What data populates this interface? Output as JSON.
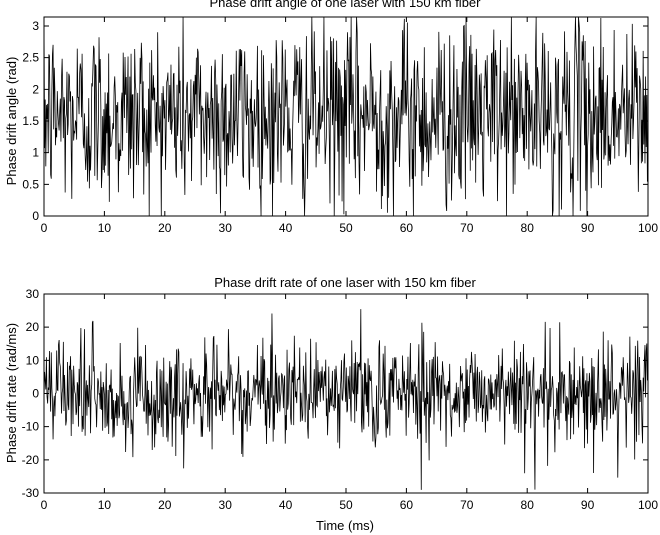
{
  "chart_data": [
    {
      "type": "line",
      "title": "Phase drift angle of one laser with 150 km fiber",
      "xlabel": "",
      "ylabel": "Phase drift angle (rad)",
      "xlim": [
        0,
        100
      ],
      "ylim": [
        0,
        3.14159
      ],
      "xticks": [
        0,
        10,
        20,
        30,
        40,
        50,
        60,
        70,
        80,
        90,
        100
      ],
      "yticks": [
        0,
        0.5,
        1,
        1.5,
        2,
        2.5,
        3
      ],
      "series": [
        {
          "color": "#000000",
          "samples": 1000,
          "x_start": 0,
          "x_end": 100,
          "mean": 1.6,
          "spread": 0.85
        }
      ]
    },
    {
      "type": "line",
      "title": "Phase drift rate of one laser with 150 km fiber",
      "xlabel": "Time (ms)",
      "ylabel": "Phase drift rate (rad/ms)",
      "xlim": [
        0,
        100
      ],
      "ylim": [
        -30,
        30
      ],
      "xticks": [
        0,
        10,
        20,
        30,
        40,
        50,
        60,
        70,
        80,
        90,
        100
      ],
      "yticks": [
        -30,
        -20,
        -10,
        0,
        10,
        20,
        30
      ],
      "series": [
        {
          "color": "#000000",
          "samples": 1000,
          "x_start": 0,
          "x_end": 100,
          "mean": 0,
          "spread": 8
        }
      ]
    }
  ]
}
